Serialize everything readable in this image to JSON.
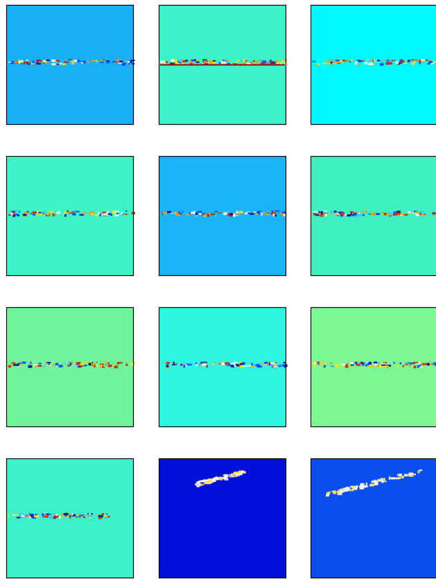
{
  "panels": [
    {
      "color": "#1ab0f5"
    },
    {
      "color": "#3cf2c8"
    },
    {
      "color": "#00f8ff"
    },
    {
      "color": "#3df2c4"
    },
    {
      "color": "#1ab4f5"
    },
    {
      "color": "#3ef0c0"
    },
    {
      "color": "#6ef59a"
    },
    {
      "color": "#2ff5e0"
    },
    {
      "color": "#7cf893"
    },
    {
      "color": "#3cf2c8"
    },
    {
      "color": "#0010d8"
    },
    {
      "color": "#0b4ef0"
    }
  ]
}
